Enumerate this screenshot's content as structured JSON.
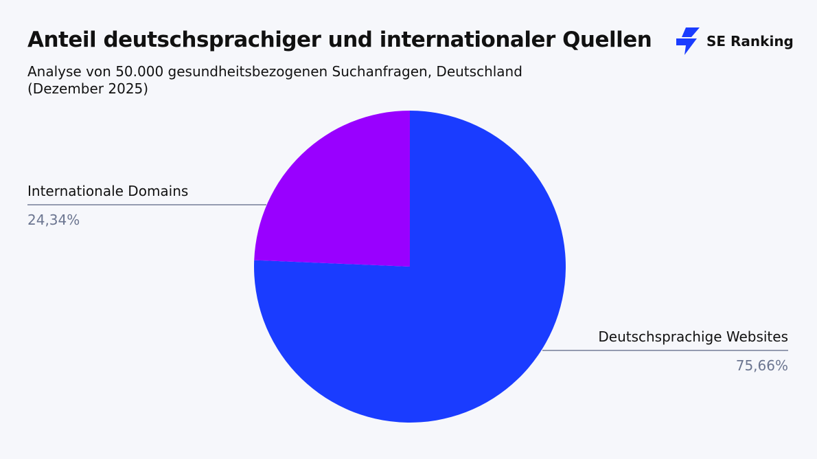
{
  "logo": "SE Ranking",
  "chart_data": {
    "type": "pie",
    "title": "Anteil deutschsprachiger und internationaler Quellen",
    "subtitle": "Analyse von 50.000 gesundheitsbezogenen Suchanfragen, Deutschland (Dezember 2025)",
    "categories": [
      "Deutschsprachige Websites",
      "Internationale Domains"
    ],
    "values": [
      75.66,
      24.34
    ],
    "value_labels": [
      "75,66%",
      "24,34%"
    ],
    "colors": [
      "#1a3cff",
      "#9900ff"
    ]
  }
}
